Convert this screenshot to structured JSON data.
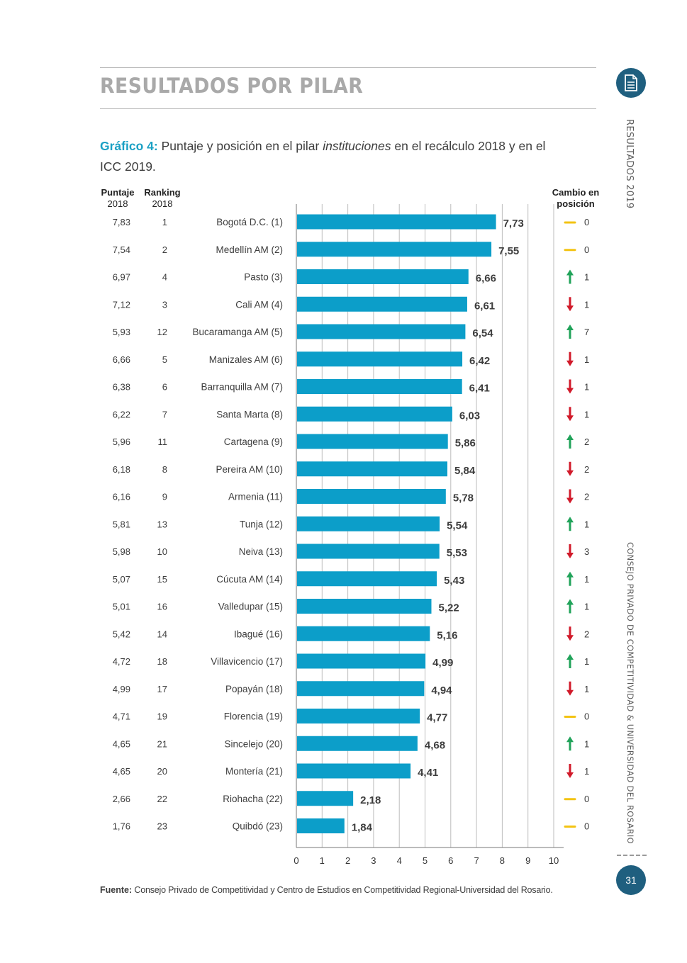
{
  "header": {
    "title": "RESULTADOS POR PILAR",
    "side_label_top": "RESULTADOS  2019",
    "side_label_bottom": "CONSEJO PRIVADO DE COMPETITIVIDAD & UNIVERSIDAD DEL ROSARIO"
  },
  "caption": {
    "label": "Gráfico 4:",
    "text_before": " Puntaje y posición en el pilar ",
    "text_italic": "instituciones",
    "text_after": " en el recálculo 2018 y en el ICC 2019."
  },
  "columns": {
    "score_2018": [
      "Puntaje",
      "2018"
    ],
    "rank_2018": [
      "Ranking",
      "2018"
    ],
    "change": [
      "Cambio en",
      "posición"
    ]
  },
  "colors": {
    "bar": "#0c9ec9",
    "up": "#21a35a",
    "down": "#d11a2a",
    "same": "#f3c313",
    "accent": "#1aa0c4",
    "badge": "#1f5f7f"
  },
  "chart_data": {
    "type": "bar",
    "orientation": "horizontal",
    "categories": [
      "Bogotá D.C. (1)",
      "Medellín AM (2)",
      "Pasto (3)",
      "Cali AM (4)",
      "Bucaramanga AM (5)",
      "Manizales AM (6)",
      "Barranquilla AM (7)",
      "Santa Marta (8)",
      "Cartagena (9)",
      "Pereira AM (10)",
      "Armenia (11)",
      "Tunja (12)",
      "Neiva (13)",
      "Cúcuta AM (14)",
      "Valledupar (15)",
      "Ibagué (16)",
      "Villavicencio (17)",
      "Popayán (18)",
      "Florencia (19)",
      "Sincelejo (20)",
      "Montería (21)",
      "Riohacha (22)",
      "Quibdó (23)"
    ],
    "values": [
      7.73,
      7.55,
      6.66,
      6.61,
      6.54,
      6.42,
      6.41,
      6.03,
      5.86,
      5.84,
      5.78,
      5.54,
      5.53,
      5.43,
      5.22,
      5.16,
      4.99,
      4.94,
      4.77,
      4.68,
      4.41,
      2.18,
      1.84
    ],
    "value_labels": [
      "7,73",
      "7,55",
      "6,66",
      "6,61",
      "6,54",
      "6,42",
      "6,41",
      "6,03",
      "5,86",
      "5,84",
      "5,78",
      "5,54",
      "5,53",
      "5,43",
      "5,22",
      "5,16",
      "4,99",
      "4,94",
      "4,77",
      "4,68",
      "4,41",
      "2,18",
      "1,84"
    ],
    "score_2018": [
      "7,83",
      "7,54",
      "6,97",
      "7,12",
      "5,93",
      "6,66",
      "6,38",
      "6,22",
      "5,96",
      "6,18",
      "6,16",
      "5,81",
      "5,98",
      "5,07",
      "5,01",
      "5,42",
      "4,72",
      "4,99",
      "4,71",
      "4,65",
      "4,65",
      "2,66",
      "1,76"
    ],
    "rank_2018": [
      "1",
      "2",
      "4",
      "3",
      "12",
      "5",
      "6",
      "7",
      "11",
      "8",
      "9",
      "13",
      "10",
      "15",
      "16",
      "14",
      "18",
      "17",
      "19",
      "21",
      "20",
      "22",
      "23"
    ],
    "change_direction": [
      "same",
      "same",
      "up",
      "down",
      "up",
      "down",
      "down",
      "down",
      "up",
      "down",
      "down",
      "up",
      "down",
      "up",
      "up",
      "down",
      "up",
      "down",
      "same",
      "up",
      "down",
      "same",
      "same"
    ],
    "change_value": [
      "0",
      "0",
      "1",
      "1",
      "7",
      "1",
      "1",
      "1",
      "2",
      "2",
      "2",
      "1",
      "3",
      "1",
      "1",
      "2",
      "1",
      "1",
      "0",
      "1",
      "1",
      "0",
      "0"
    ],
    "xlim": [
      0,
      10
    ],
    "xticks": [
      "0",
      "1",
      "2",
      "3",
      "4",
      "5",
      "6",
      "7",
      "8",
      "9",
      "10"
    ],
    "grid": true
  },
  "source": {
    "label": "Fuente:",
    "text": " Consejo Privado de Competitividad y Centro de Estudios en Competitividad Regional-Universidad del Rosario."
  },
  "page_number": "31"
}
